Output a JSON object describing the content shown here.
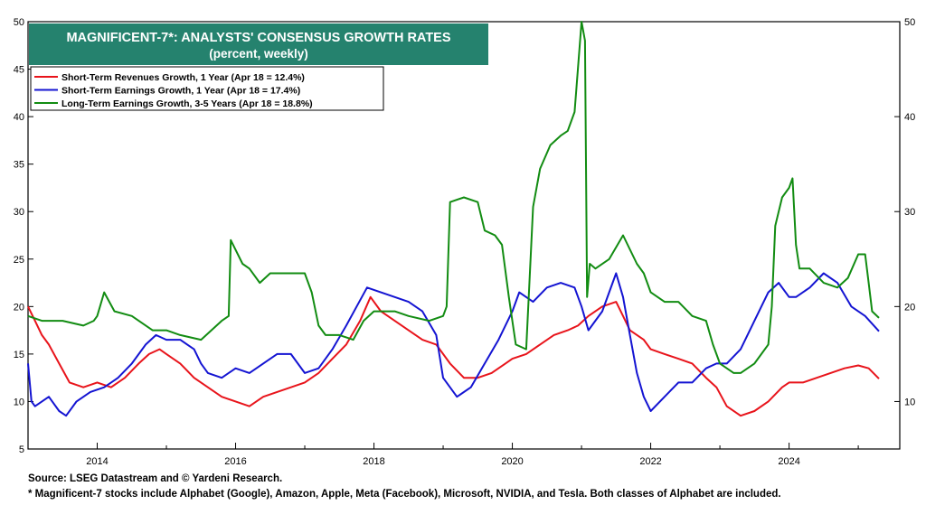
{
  "chart_data": {
    "type": "line",
    "title": "MAGNIFICENT-7*: ANALYSTS' CONSENSUS GROWTH RATES",
    "subtitle": "(percent, weekly)",
    "xlabel": "",
    "ylabel": "",
    "xlim": [
      2013.0,
      2025.6
    ],
    "ylim": [
      5,
      50
    ],
    "x_ticks": [
      2014,
      2016,
      2018,
      2020,
      2022,
      2024
    ],
    "y_ticks_left": [
      5,
      10,
      15,
      20,
      25,
      30,
      35,
      40,
      45,
      50
    ],
    "y_ticks_right": [
      10,
      20,
      30,
      40,
      50
    ],
    "legend_position": "top-left",
    "grid": false,
    "series": [
      {
        "name": "Short-Term Revenues Growth, 1 Year (Apr 18 = 12.4%)",
        "color": "#e8141b",
        "x": [
          2013.0,
          2013.1,
          2013.2,
          2013.3,
          2013.45,
          2013.6,
          2013.8,
          2014.0,
          2014.2,
          2014.4,
          2014.6,
          2014.75,
          2014.9,
          2015.0,
          2015.2,
          2015.4,
          2015.6,
          2015.8,
          2016.0,
          2016.2,
          2016.4,
          2016.6,
          2016.8,
          2017.0,
          2017.2,
          2017.4,
          2017.6,
          2017.8,
          2017.95,
          2018.1,
          2018.3,
          2018.5,
          2018.7,
          2018.9,
          2019.1,
          2019.3,
          2019.5,
          2019.7,
          2019.9,
          2020.0,
          2020.2,
          2020.4,
          2020.6,
          2020.8,
          2020.95,
          2021.1,
          2021.3,
          2021.5,
          2021.6,
          2021.7,
          2021.9,
          2022.0,
          2022.2,
          2022.4,
          2022.6,
          2022.8,
          2022.95,
          2023.1,
          2023.3,
          2023.5,
          2023.7,
          2023.9,
          2024.0,
          2024.2,
          2024.4,
          2024.6,
          2024.8,
          2025.0,
          2025.15,
          2025.3
        ],
        "y": [
          20.0,
          18.5,
          17.0,
          16.0,
          14.0,
          12.0,
          11.5,
          12.0,
          11.5,
          12.5,
          14.0,
          15.0,
          15.5,
          15.0,
          14.0,
          12.5,
          11.5,
          10.5,
          10.0,
          9.5,
          10.5,
          11.0,
          11.5,
          12.0,
          13.0,
          14.5,
          16.0,
          18.5,
          21.0,
          19.5,
          18.5,
          17.5,
          16.5,
          16.0,
          14.0,
          12.5,
          12.5,
          13.0,
          14.0,
          14.5,
          15.0,
          16.0,
          17.0,
          17.5,
          18.0,
          19.0,
          20.0,
          20.5,
          19.0,
          17.5,
          16.5,
          15.5,
          15.0,
          14.5,
          14.0,
          12.5,
          11.5,
          9.5,
          8.5,
          9.0,
          10.0,
          11.5,
          12.0,
          12.0,
          12.5,
          13.0,
          13.5,
          13.8,
          13.5,
          12.4
        ]
      },
      {
        "name": "Short-Term Earnings Growth, 1 Year (Apr 18 = 17.4%)",
        "color": "#1414d2",
        "x": [
          2013.0,
          2013.05,
          2013.1,
          2013.3,
          2013.45,
          2013.55,
          2013.7,
          2013.9,
          2014.1,
          2014.3,
          2014.5,
          2014.7,
          2014.85,
          2015.0,
          2015.2,
          2015.4,
          2015.5,
          2015.6,
          2015.8,
          2016.0,
          2016.2,
          2016.4,
          2016.6,
          2016.8,
          2017.0,
          2017.2,
          2017.4,
          2017.6,
          2017.75,
          2017.9,
          2018.1,
          2018.3,
          2018.5,
          2018.7,
          2018.9,
          2019.0,
          2019.2,
          2019.4,
          2019.6,
          2019.8,
          2020.0,
          2020.1,
          2020.3,
          2020.5,
          2020.7,
          2020.9,
          2021.0,
          2021.1,
          2021.3,
          2021.5,
          2021.6,
          2021.7,
          2021.8,
          2021.9,
          2022.0,
          2022.2,
          2022.4,
          2022.6,
          2022.8,
          2022.95,
          2023.1,
          2023.3,
          2023.5,
          2023.7,
          2023.85,
          2024.0,
          2024.1,
          2024.3,
          2024.5,
          2024.7,
          2024.9,
          2025.1,
          2025.3
        ],
        "y": [
          14.0,
          10.0,
          9.5,
          10.5,
          9.0,
          8.5,
          10.0,
          11.0,
          11.5,
          12.5,
          14.0,
          16.0,
          17.0,
          16.5,
          16.5,
          15.5,
          14.0,
          13.0,
          12.5,
          13.5,
          13.0,
          14.0,
          15.0,
          15.0,
          13.0,
          13.5,
          15.5,
          18.0,
          20.0,
          22.0,
          21.5,
          21.0,
          20.5,
          19.5,
          17.0,
          12.5,
          10.5,
          11.5,
          14.0,
          16.5,
          19.5,
          21.5,
          20.5,
          22.0,
          22.5,
          22.0,
          20.0,
          17.5,
          19.5,
          23.5,
          21.0,
          17.0,
          13.0,
          10.5,
          9.0,
          10.5,
          12.0,
          12.0,
          13.5,
          14.0,
          14.0,
          15.5,
          18.5,
          21.5,
          22.5,
          21.0,
          21.0,
          22.0,
          23.5,
          22.5,
          20.0,
          19.0,
          17.4
        ]
      },
      {
        "name": "Long-Term Earnings Growth, 3-5 Years (Apr 18 = 18.8%)",
        "color": "#128c12",
        "x": [
          2013.0,
          2013.2,
          2013.5,
          2013.8,
          2013.95,
          2014.0,
          2014.1,
          2014.25,
          2014.5,
          2014.8,
          2015.0,
          2015.2,
          2015.5,
          2015.8,
          2015.9,
          2015.93,
          2016.1,
          2016.2,
          2016.35,
          2016.5,
          2016.8,
          2017.0,
          2017.1,
          2017.2,
          2017.3,
          2017.5,
          2017.7,
          2017.85,
          2018.0,
          2018.3,
          2018.5,
          2018.8,
          2019.0,
          2019.05,
          2019.1,
          2019.3,
          2019.5,
          2019.6,
          2019.75,
          2019.85,
          2019.95,
          2020.05,
          2020.2,
          2020.3,
          2020.4,
          2020.55,
          2020.7,
          2020.8,
          2020.9,
          2021.0,
          2021.05,
          2021.08,
          2021.12,
          2021.2,
          2021.4,
          2021.6,
          2021.8,
          2021.9,
          2022.0,
          2022.2,
          2022.4,
          2022.6,
          2022.8,
          2022.9,
          2023.0,
          2023.2,
          2023.3,
          2023.5,
          2023.7,
          2023.75,
          2023.8,
          2023.9,
          2024.0,
          2024.05,
          2024.1,
          2024.15,
          2024.3,
          2024.5,
          2024.7,
          2024.85,
          2025.0,
          2025.1,
          2025.15,
          2025.2,
          2025.3
        ],
        "y": [
          19.0,
          18.5,
          18.5,
          18.0,
          18.5,
          19.0,
          21.5,
          19.5,
          19.0,
          17.5,
          17.5,
          17.0,
          16.5,
          18.5,
          19.0,
          27.0,
          24.5,
          24.0,
          22.5,
          23.5,
          23.5,
          23.5,
          21.5,
          18.0,
          17.0,
          17.0,
          16.5,
          18.5,
          19.5,
          19.5,
          19.0,
          18.5,
          19.0,
          20.0,
          31.0,
          31.5,
          31.0,
          28.0,
          27.5,
          26.5,
          21.0,
          16.0,
          15.5,
          30.5,
          34.5,
          37.0,
          38.0,
          38.5,
          40.5,
          50.0,
          48.0,
          21.0,
          24.5,
          24.0,
          25.0,
          27.5,
          24.5,
          23.5,
          21.5,
          20.5,
          20.5,
          19.0,
          18.5,
          16.0,
          14.0,
          13.0,
          13.0,
          14.0,
          16.0,
          20.0,
          28.5,
          31.5,
          32.5,
          33.5,
          26.5,
          24.0,
          24.0,
          22.5,
          22.0,
          23.0,
          25.5,
          25.5,
          22.5,
          19.5,
          18.8
        ]
      }
    ]
  },
  "footnotes": {
    "source": "Source: LSEG Datastream and © Yardeni Research.",
    "note": "* Magnificent-7 stocks include Alphabet (Google), Amazon, Apple, Meta (Facebook), Microsoft, NVIDIA, and Tesla. Both classes of Alphabet are included."
  },
  "colors": {
    "title_box_bg": "#25826e",
    "frame": "#000000",
    "background": "#ffffff"
  }
}
